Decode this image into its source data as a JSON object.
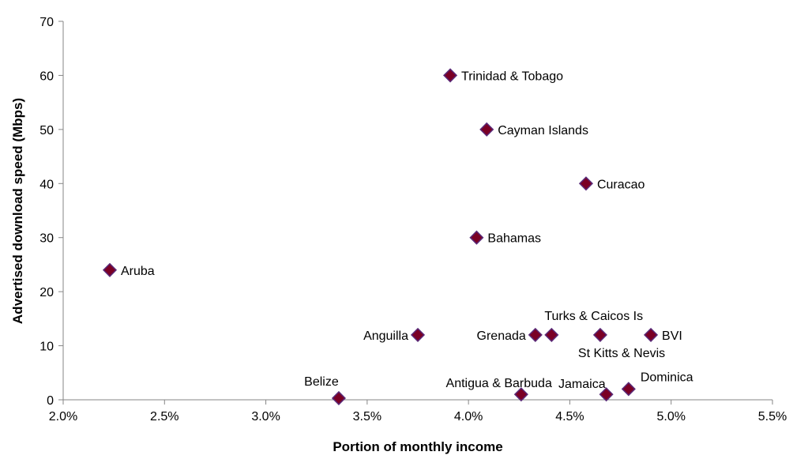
{
  "chart_data": {
    "type": "scatter",
    "title": "",
    "xlabel": "Portion of monthly income",
    "ylabel": "Advertised download speed (Mbps)",
    "xlim": [
      2.0,
      5.5
    ],
    "ylim": [
      0,
      70
    ],
    "xticks": [
      2.0,
      2.5,
      3.0,
      3.5,
      4.0,
      4.5,
      5.0,
      5.5
    ],
    "xtick_labels": [
      "2.0%",
      "2.5%",
      "3.0%",
      "3.5%",
      "4.0%",
      "4.5%",
      "5.0%",
      "5.5%"
    ],
    "yticks": [
      0,
      10,
      20,
      30,
      40,
      50,
      60,
      70
    ],
    "ytick_labels": [
      "0",
      "10",
      "20",
      "30",
      "40",
      "50",
      "60",
      "70"
    ],
    "grid": false,
    "legend": "none",
    "marker_color": "#7a0025",
    "marker_edge_color": "#5a2a78",
    "points": [
      {
        "label": "Aruba",
        "x": 2.23,
        "y": 24,
        "label_pos": "right"
      },
      {
        "label": "Belize",
        "x": 3.36,
        "y": 0.3,
        "label_pos": "above-left"
      },
      {
        "label": "Anguilla",
        "x": 3.75,
        "y": 12,
        "label_pos": "left"
      },
      {
        "label": "Trinidad & Tobago",
        "x": 3.91,
        "y": 60,
        "label_pos": "right"
      },
      {
        "label": "Bahamas",
        "x": 4.04,
        "y": 30,
        "label_pos": "right"
      },
      {
        "label": "Cayman Islands",
        "x": 4.09,
        "y": 50,
        "label_pos": "right"
      },
      {
        "label": "Antigua & Barbuda",
        "x": 4.26,
        "y": 1,
        "label_pos": "above-left"
      },
      {
        "label": "Grenada",
        "x": 4.33,
        "y": 12,
        "label_pos": "left"
      },
      {
        "label": "Turks & Caicos Is",
        "x": 4.41,
        "y": 12,
        "label_pos": "above-right"
      },
      {
        "label": "Curacao",
        "x": 4.58,
        "y": 40,
        "label_pos": "right"
      },
      {
        "label": "St Kitts & Nevis",
        "x": 4.65,
        "y": 12,
        "label_pos": "below"
      },
      {
        "label": "Jamaica",
        "x": 4.68,
        "y": 1,
        "label_pos": "above-left"
      },
      {
        "label": "Dominica",
        "x": 4.79,
        "y": 2,
        "label_pos": "above-right"
      },
      {
        "label": "BVI",
        "x": 4.9,
        "y": 12,
        "label_pos": "right"
      }
    ]
  }
}
